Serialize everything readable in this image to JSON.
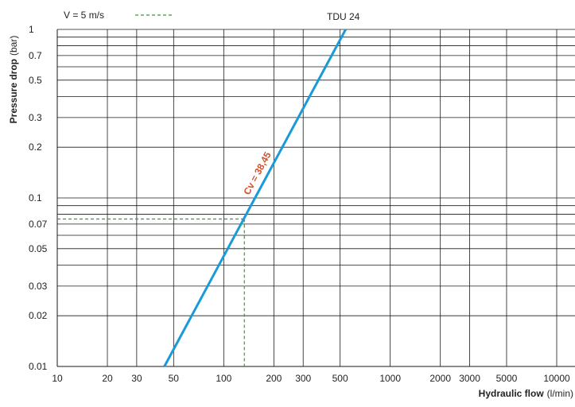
{
  "chart_data": {
    "type": "line",
    "scale": "log-log",
    "grid": true,
    "xlabel": {
      "bold": "Hydraulic flow",
      "unit": "(l/min)"
    },
    "ylabel": {
      "bold": "Pressure drop",
      "unit": "(bar)"
    },
    "xlim": [
      10,
      12000
    ],
    "ylim": [
      0.01,
      1
    ],
    "x_ticks": [
      {
        "value": 10,
        "label": "10"
      },
      {
        "value": 20,
        "label": "20"
      },
      {
        "value": 30,
        "label": "30"
      },
      {
        "value": 50,
        "label": "50"
      },
      {
        "value": 100,
        "label": "100"
      },
      {
        "value": 200,
        "label": "200"
      },
      {
        "value": 300,
        "label": "300"
      },
      {
        "value": 500,
        "label": "500"
      },
      {
        "value": 1000,
        "label": "1000"
      },
      {
        "value": 2000,
        "label": "2000"
      },
      {
        "value": 3000,
        "label": "3000"
      },
      {
        "value": 5000,
        "label": "5000"
      },
      {
        "value": 10000,
        "label": "10000"
      }
    ],
    "y_ticks": [
      {
        "value": 1,
        "label": "1"
      },
      {
        "value": 0.7,
        "label": "0.7"
      },
      {
        "value": 0.5,
        "label": "0.5"
      },
      {
        "value": 0.3,
        "label": "0.3"
      },
      {
        "value": 0.2,
        "label": "0.2"
      },
      {
        "value": 0.1,
        "label": "0.1"
      },
      {
        "value": 0.07,
        "label": "0.07"
      },
      {
        "value": 0.05,
        "label": "0.05"
      },
      {
        "value": 0.03,
        "label": "0.03"
      },
      {
        "value": 0.02,
        "label": "0.02"
      },
      {
        "value": 0.01,
        "label": "0.01"
      }
    ],
    "grid_x": [
      10,
      20,
      30,
      50,
      100,
      200,
      300,
      500,
      1000,
      2000,
      3000,
      5000,
      10000
    ],
    "grid_y": [
      0.01,
      0.02,
      0.03,
      0.04,
      0.05,
      0.06,
      0.07,
      0.08,
      0.09,
      0.1,
      0.2,
      0.3,
      0.4,
      0.5,
      0.6,
      0.7,
      0.8,
      0.9,
      1
    ],
    "series": [
      {
        "name": "TDU 24",
        "color": "#1a9ad6",
        "x": [
          44,
          540
        ],
        "y": [
          0.01,
          1.0
        ],
        "annotation": "Cv = 38,45",
        "annotation_color": "#d0522a"
      }
    ],
    "reference": {
      "legend_text": "V =   5 m/s",
      "color": "#3a9a3a",
      "style": "dashed",
      "x": 133,
      "y": 0.075
    }
  }
}
